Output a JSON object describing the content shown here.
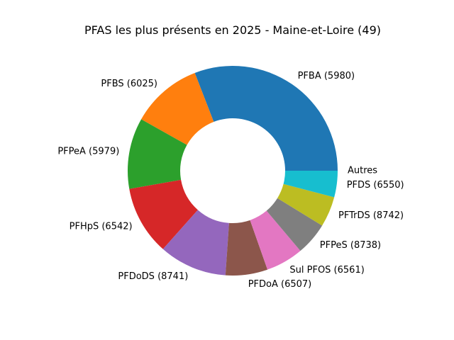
{
  "chart_data": {
    "type": "pie",
    "title": "PFAS les plus présents en 2025 - Maine-et-Loire (49)",
    "donut": true,
    "labels": [
      "PFBA (5980)",
      "PFBS (6025)",
      "PFPeA (5979)",
      "PFHpS (6542)",
      "PFDoDS (8741)",
      "PFDoA (6507)",
      "Sul PFOS (6561)",
      "PFPeS (8738)",
      "PFTrDS (8742)",
      "PFDS (6550)",
      "Autres"
    ],
    "values": [
      31.0,
      11.0,
      11.0,
      10.7,
      10.5,
      6.5,
      5.8,
      5.1,
      4.7,
      4.1,
      0.0
    ],
    "colors": [
      "#1f77b4",
      "#ff7f0e",
      "#2ca02c",
      "#d62728",
      "#9467bd",
      "#8c564b",
      "#e377c2",
      "#7f7f7f",
      "#bcbd22",
      "#17becf",
      "#1f77b4"
    ],
    "start_angle": "0 degrees (east), counter-clockwise"
  }
}
